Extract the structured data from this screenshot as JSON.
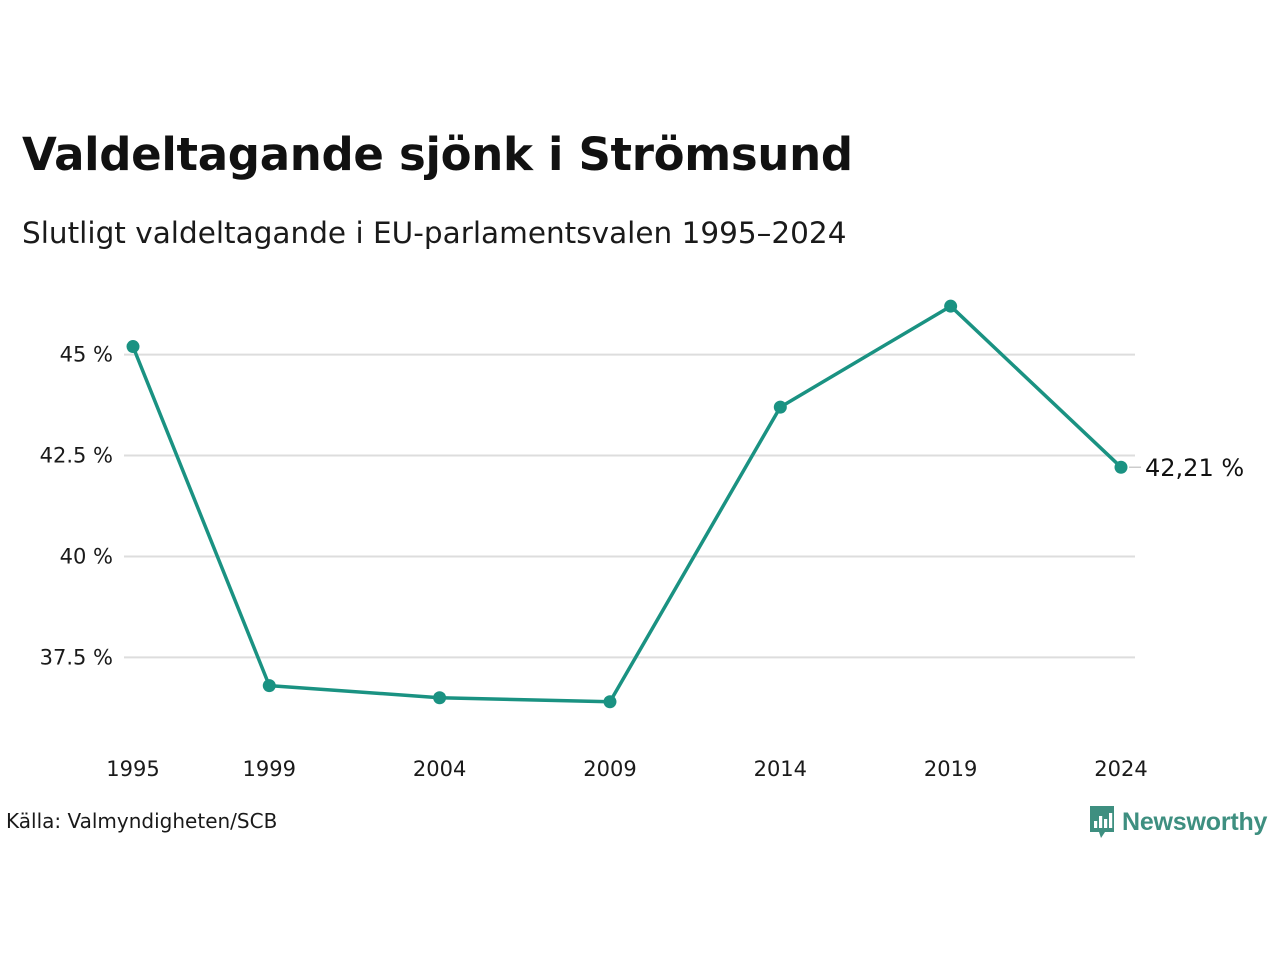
{
  "title": "Valdeltagande sjönk i Strömsund",
  "subtitle": "Slutligt valdeltagande i EU-parlamentsvalen 1995–2024",
  "source": "Källa: Valmyndigheten/SCB",
  "brand": "Newsworthy",
  "colors": {
    "line": "#1a9282",
    "grid": "#dddddd",
    "brand": "#3e8f80"
  },
  "icons": {
    "brand_logo": "bar-chart-speech-bubble-icon"
  },
  "chart_data": {
    "type": "line",
    "x": [
      1995,
      1999,
      2004,
      2009,
      2014,
      2019,
      2024
    ],
    "categories": [
      "1995",
      "1999",
      "2004",
      "2009",
      "2014",
      "2019",
      "2024"
    ],
    "series": [
      {
        "values": [
          45.2,
          36.8,
          36.5,
          36.4,
          43.7,
          46.2,
          42.21
        ]
      }
    ],
    "yticks": [
      {
        "value": 37.5,
        "label": "37.5 %"
      },
      {
        "value": 40,
        "label": "40 %"
      },
      {
        "value": 42.5,
        "label": "42.5 %"
      },
      {
        "value": 45,
        "label": "45 %"
      }
    ],
    "annotations": [
      {
        "x": 2024,
        "y": 42.21,
        "label": "42,21 %"
      }
    ],
    "ylim": [
      35.8,
      46.7
    ],
    "grid": true,
    "xlabel": "",
    "ylabel": ""
  }
}
